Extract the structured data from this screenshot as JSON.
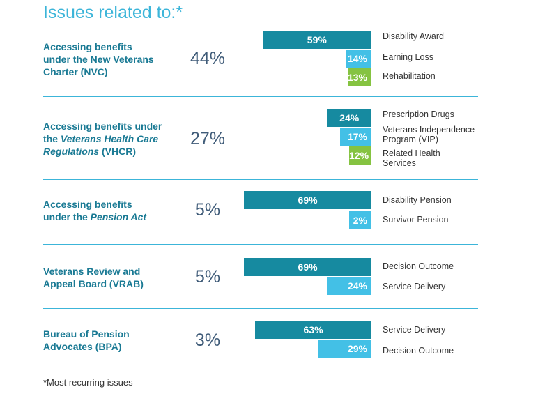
{
  "title": "Issues related to:*",
  "footnote": "*Most recurring issues",
  "colors": {
    "dark": "#168aa0",
    "light": "#43c0e6",
    "green": "#85c341",
    "title": "#3cb5d9",
    "label": "#1a7a94",
    "pct": "#3f5b78"
  },
  "groups": [
    {
      "label_parts": [
        {
          "t": "Accessing benefits",
          "i": false
        },
        {
          "t": "\n",
          "i": false
        },
        {
          "t": "under the New Veterans",
          "i": false
        },
        {
          "t": "\n",
          "i": false
        },
        {
          "t": "Charter (NVC)",
          "i": false
        }
      ],
      "share": "44%",
      "issues": [
        {
          "label": "59%",
          "value": 59,
          "color": "dark",
          "category": "Disability Award"
        },
        {
          "label": "14%",
          "value": 14,
          "color": "light",
          "category": "Earning Loss"
        },
        {
          "label": "13%",
          "value": 13,
          "color": "green",
          "category": "Rehabilitation"
        }
      ]
    },
    {
      "label_parts": [
        {
          "t": "Accessing benefits under",
          "i": false
        },
        {
          "t": "\n",
          "i": false
        },
        {
          "t": "the ",
          "i": false
        },
        {
          "t": "Veterans Health Care",
          "i": true
        },
        {
          "t": "\n",
          "i": false
        },
        {
          "t": "Regulations",
          "i": true
        },
        {
          "t": " (VHCR)",
          "i": false
        }
      ],
      "share": "27%",
      "issues": [
        {
          "label": "24%",
          "value": 24,
          "color": "dark",
          "category": "Prescription Drugs"
        },
        {
          "label": "17%",
          "value": 17,
          "color": "light",
          "category": "Veterans Independence Program (VIP)"
        },
        {
          "label": "12%",
          "value": 12,
          "color": "green",
          "category": "Related Health Services"
        }
      ]
    },
    {
      "label_parts": [
        {
          "t": "Accessing benefits",
          "i": false
        },
        {
          "t": "\n",
          "i": false
        },
        {
          "t": "under the ",
          "i": false
        },
        {
          "t": "Pension Act",
          "i": true
        }
      ],
      "share": "5%",
      "issues": [
        {
          "label": "69%",
          "value": 69,
          "color": "dark",
          "category": "Disability Pension"
        },
        {
          "label": "2%",
          "value": 2,
          "color": "light",
          "category": "Survivor Pension"
        }
      ]
    },
    {
      "label_parts": [
        {
          "t": "Veterans Review and",
          "i": false
        },
        {
          "t": "\n",
          "i": false
        },
        {
          "t": "Appeal Board (VRAB)",
          "i": false
        }
      ],
      "share": "5%",
      "issues": [
        {
          "label": "69%",
          "value": 69,
          "color": "dark",
          "category": "Decision Outcome"
        },
        {
          "label": "24%",
          "value": 24,
          "color": "light",
          "category": "Service Delivery"
        }
      ]
    },
    {
      "label_parts": [
        {
          "t": "Bureau of Pension",
          "i": false
        },
        {
          "t": "\n",
          "i": false
        },
        {
          "t": "Advocates (BPA)",
          "i": false
        }
      ],
      "share": "3%",
      "issues": [
        {
          "label": "63%",
          "value": 63,
          "color": "dark",
          "category": "Service Delivery"
        },
        {
          "label": "29%",
          "value": 29,
          "color": "light",
          "category": "Decision Outcome"
        }
      ]
    }
  ],
  "chart_data": {
    "type": "bar",
    "title": "Issues related to:*",
    "orientation": "horizontal",
    "groups": [
      {
        "name": "Accessing benefits under the New Veterans Charter (NVC)",
        "share": 44,
        "categories": [
          "Disability Award",
          "Earning Loss",
          "Rehabilitation"
        ],
        "values": [
          59,
          14,
          13
        ]
      },
      {
        "name": "Accessing benefits under the Veterans Health Care Regulations (VHCR)",
        "share": 27,
        "categories": [
          "Prescription Drugs",
          "Veterans Independence Program (VIP)",
          "Related Health Services"
        ],
        "values": [
          24,
          17,
          12
        ]
      },
      {
        "name": "Accessing benefits under the Pension Act",
        "share": 5,
        "categories": [
          "Disability Pension",
          "Survivor Pension"
        ],
        "values": [
          69,
          2
        ]
      },
      {
        "name": "Veterans Review and Appeal Board (VRAB)",
        "share": 5,
        "categories": [
          "Decision Outcome",
          "Service Delivery"
        ],
        "values": [
          69,
          24
        ]
      },
      {
        "name": "Bureau of Pension Advocates (BPA)",
        "share": 3,
        "categories": [
          "Service Delivery",
          "Decision Outcome"
        ],
        "values": [
          63,
          29
        ]
      }
    ]
  }
}
